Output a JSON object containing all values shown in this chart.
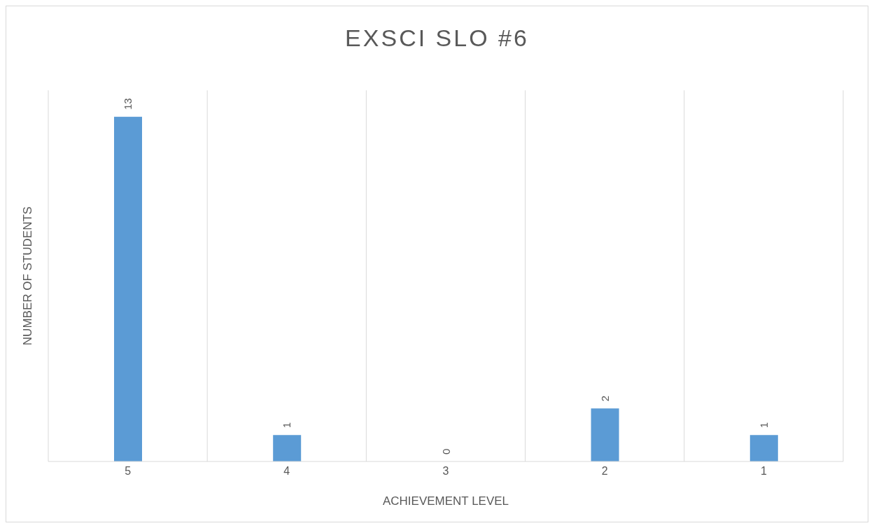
{
  "chart_data": {
    "type": "bar",
    "title": "EXSCI SLO #6",
    "xlabel": "ACHIEVEMENT LEVEL",
    "ylabel": "NUMBER OF STUDENTS",
    "categories": [
      "5",
      "4",
      "3",
      "2",
      "1"
    ],
    "values": [
      13,
      1,
      0,
      2,
      1
    ],
    "color": "#5b9bd5",
    "data_labels": true,
    "grid": "x"
  }
}
